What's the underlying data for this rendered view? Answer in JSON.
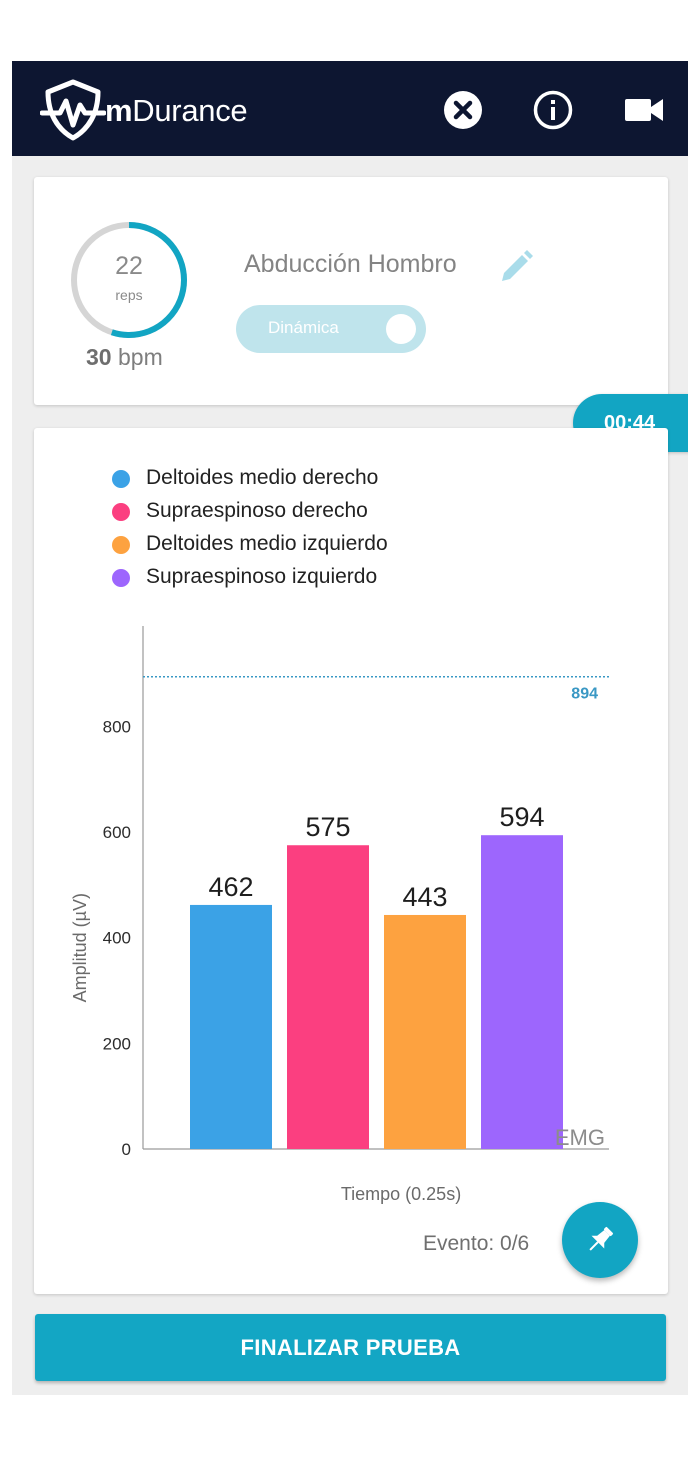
{
  "app": {
    "brand_prefix": "m",
    "brand_rest": "Durance",
    "bar_color": "#0d1631",
    "accent_color": "#13a6c4",
    "icons": [
      "shield-heartbeat-logo",
      "close-icon",
      "info-icon",
      "video-camera-icon"
    ]
  },
  "session": {
    "reps": "22",
    "reps_label": "reps",
    "reps_progress": 0.55,
    "bpm_value": "30",
    "bpm_unit": "bpm",
    "exercise_name": "Abducción Hombro",
    "mode_label": "Dinámica",
    "mode_enabled": true,
    "timer": "00:44"
  },
  "chart_data": {
    "type": "bar",
    "categories": [
      "Deltoides medio derecho",
      "Supraespinoso derecho",
      "Deltoides medio izquierdo",
      "Supraespinoso izquierdo"
    ],
    "values": [
      462,
      575,
      443,
      594
    ],
    "colors": [
      "#3ba2e6",
      "#fb3f80",
      "#fda240",
      "#9d66fd"
    ],
    "ylabel": "Amplitud (µV)",
    "xlabel": "Tiempo (0.25s)",
    "yticks": [
      0,
      200,
      400,
      600,
      800
    ],
    "ylim": [
      0,
      990
    ],
    "reference_line": {
      "value": 894,
      "label": "894",
      "color": "#3a98c4",
      "style": "dotted"
    },
    "watermark": "EMG",
    "legend_position": "top-left",
    "grid": false
  },
  "footer": {
    "event_label": "Evento: 0/6",
    "finish_label": "FINALIZAR PRUEBA"
  }
}
